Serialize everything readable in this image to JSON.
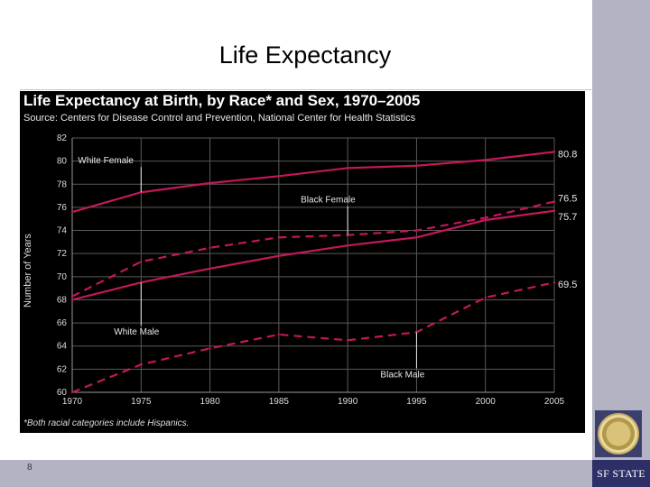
{
  "slide": {
    "title": "Life Expectancy",
    "page_number": "8",
    "brand": "SF STATE"
  },
  "colors": {
    "series": "#c2185b",
    "panel_bg": "#000000",
    "sidebar": "#b3b3c4",
    "brand_bg": "#2e2f66"
  },
  "chart_data": {
    "type": "line",
    "title": "Life Expectancy at Birth, by Race* and Sex, 1970–2005",
    "subtitle": "Source: Centers for Disease Control and Prevention, National Center for Health Statistics",
    "ylabel": "Number of Years",
    "xlabel": "",
    "footnote": "*Both racial categories include Hispanics.",
    "ylim": [
      60,
      82
    ],
    "xlim": [
      1970,
      2005
    ],
    "xticks": [
      1970,
      1975,
      1980,
      1985,
      1990,
      1995,
      2000,
      2005
    ],
    "xtick_labels": [
      "1970",
      "1975",
      "1980",
      "1985",
      "1990",
      "1995",
      "2000",
      "2005"
    ],
    "yticks": [
      60,
      62,
      64,
      66,
      68,
      70,
      72,
      74,
      76,
      78,
      80,
      82
    ],
    "ytick_labels": [
      "60",
      "62",
      "64",
      "66",
      "68",
      "70",
      "72",
      "74",
      "76",
      "78",
      "80",
      "82"
    ],
    "grid": true,
    "legend": "none",
    "x": [
      1970,
      1975,
      1980,
      1985,
      1990,
      1995,
      2000,
      2005
    ],
    "series": [
      {
        "name": "White Female",
        "style": "solid",
        "values": [
          75.6,
          77.3,
          78.1,
          78.7,
          79.4,
          79.6,
          80.1,
          80.8
        ],
        "end_label": "80.8"
      },
      {
        "name": "Black Female",
        "style": "dashed",
        "values": [
          68.3,
          71.3,
          72.5,
          73.4,
          73.6,
          74.0,
          75.1,
          76.5
        ],
        "end_label": "76.5"
      },
      {
        "name": "White Male",
        "style": "solid",
        "values": [
          68.0,
          69.5,
          70.7,
          71.8,
          72.7,
          73.4,
          74.9,
          75.7
        ],
        "end_label": "75.7"
      },
      {
        "name": "Black Male",
        "style": "dashed",
        "values": [
          60.0,
          62.4,
          63.8,
          65.0,
          64.5,
          65.2,
          68.2,
          69.5
        ],
        "end_label": "69.5"
      }
    ]
  }
}
